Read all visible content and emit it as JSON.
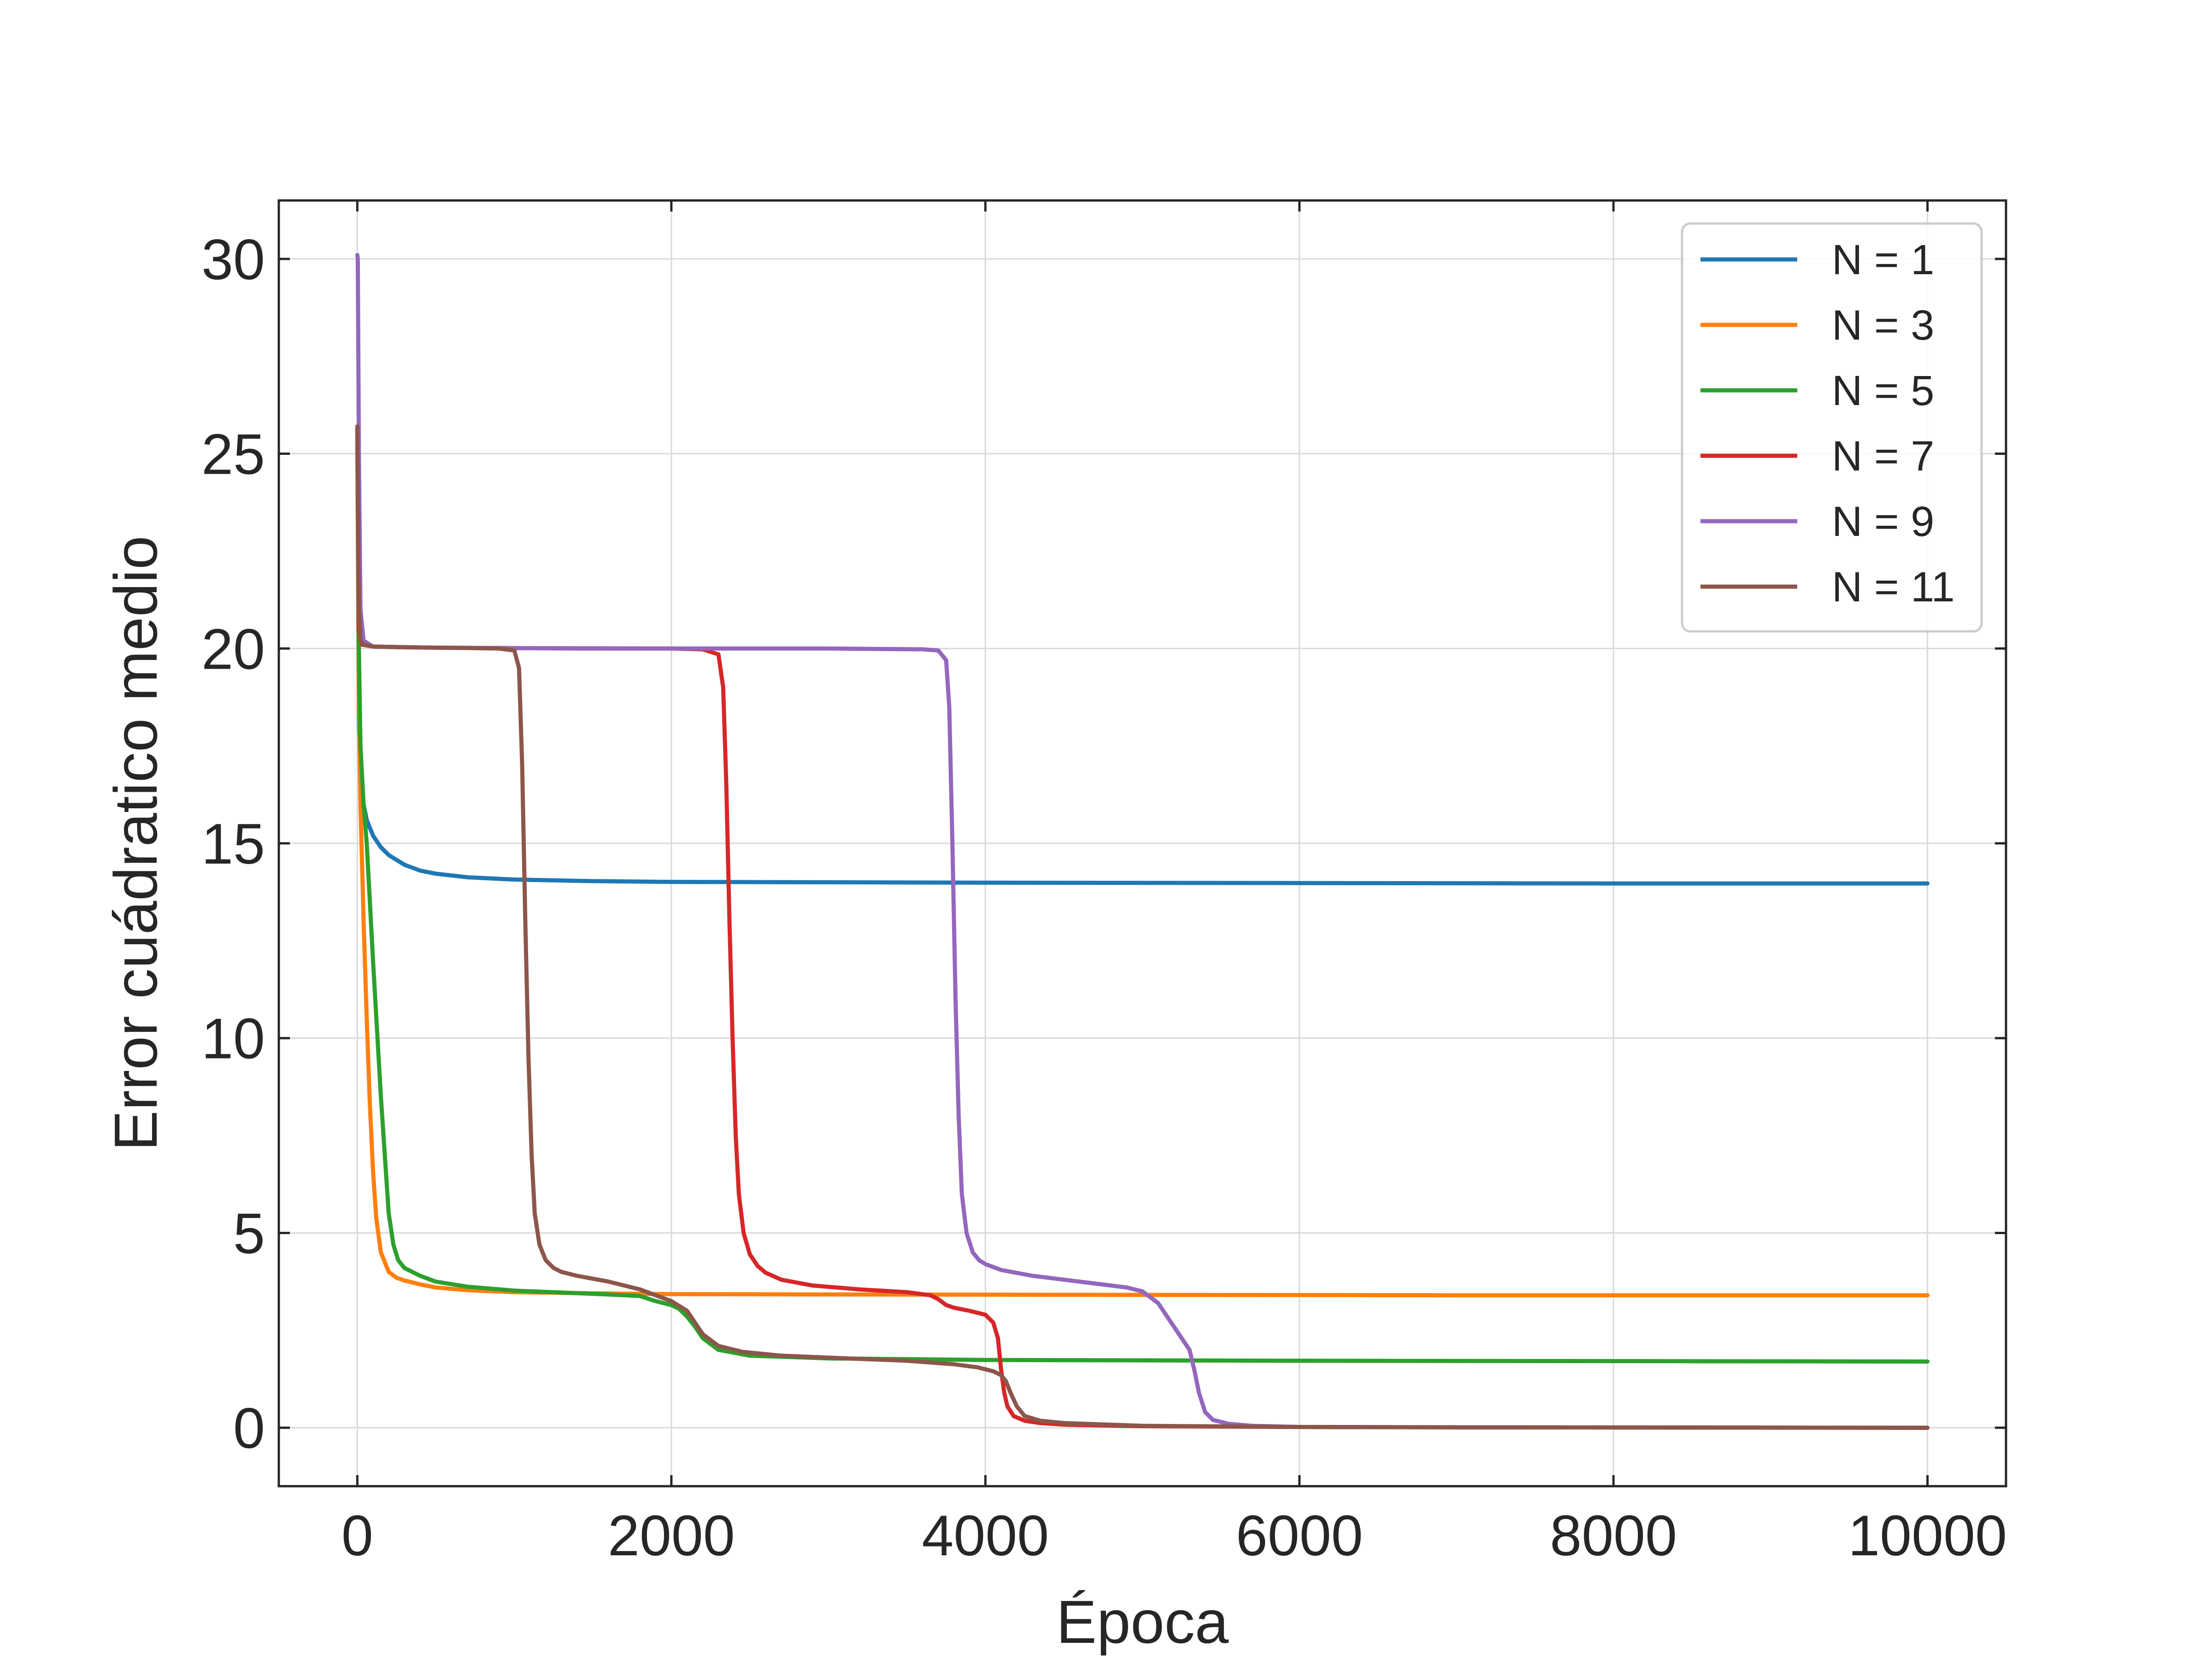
{
  "chart_data": {
    "type": "line",
    "title": "",
    "xlabel": "Época",
    "ylabel": "Error cuádratico medio",
    "xlim": [
      -500,
      10500
    ],
    "ylim": [
      -1.5,
      31.5
    ],
    "xticks": [
      0,
      2000,
      4000,
      6000,
      8000,
      10000
    ],
    "xtick_labels": [
      "0",
      "2000",
      "4000",
      "6000",
      "8000",
      "10000"
    ],
    "yticks": [
      0,
      5,
      10,
      15,
      20,
      25,
      30
    ],
    "ytick_labels": [
      "0",
      "5",
      "10",
      "15",
      "20",
      "25",
      "30"
    ],
    "grid": true,
    "legend_position": "top-right",
    "series": [
      {
        "name": "N = 1",
        "color": "#1f77b4",
        "x": [
          0,
          10,
          30,
          60,
          100,
          150,
          200,
          300,
          400,
          500,
          700,
          1000,
          1500,
          2000,
          3000,
          4000,
          6000,
          8000,
          10000
        ],
        "y": [
          25.6,
          18.0,
          16.2,
          15.6,
          15.2,
          14.9,
          14.7,
          14.45,
          14.3,
          14.22,
          14.13,
          14.07,
          14.03,
          14.01,
          14.0,
          13.99,
          13.98,
          13.97,
          13.97
        ]
      },
      {
        "name": "N = 3",
        "color": "#ff7f0e",
        "x": [
          0,
          10,
          20,
          40,
          60,
          80,
          100,
          120,
          150,
          200,
          250,
          300,
          400,
          500,
          700,
          1000,
          1500,
          2000,
          3000,
          5000,
          7000,
          10000
        ],
        "y": [
          25.6,
          18.5,
          16.0,
          13.0,
          10.5,
          8.3,
          6.6,
          5.4,
          4.5,
          4.0,
          3.85,
          3.78,
          3.68,
          3.6,
          3.53,
          3.48,
          3.45,
          3.43,
          3.42,
          3.41,
          3.4,
          3.4
        ]
      },
      {
        "name": "N = 5",
        "color": "#2ca02c",
        "x": [
          0,
          10,
          20,
          40,
          60,
          100,
          150,
          200,
          230,
          260,
          300,
          400,
          500,
          700,
          1000,
          1300,
          1600,
          1800,
          1900,
          2000,
          2050,
          2100,
          2150,
          2200,
          2300,
          2500,
          3000,
          4000,
          6000,
          8000,
          10000
        ],
        "y": [
          25.6,
          20.0,
          17.5,
          16.0,
          15.0,
          12.0,
          8.5,
          5.5,
          4.7,
          4.3,
          4.1,
          3.9,
          3.75,
          3.62,
          3.52,
          3.47,
          3.42,
          3.38,
          3.25,
          3.15,
          3.05,
          2.85,
          2.6,
          2.3,
          2.0,
          1.85,
          1.78,
          1.74,
          1.72,
          1.71,
          1.7
        ]
      },
      {
        "name": "N = 7",
        "color": "#d62728",
        "x": [
          0,
          10,
          30,
          100,
          500,
          1000,
          1500,
          2000,
          2200,
          2300,
          2330,
          2350,
          2370,
          2390,
          2410,
          2430,
          2460,
          2500,
          2550,
          2600,
          2700,
          2900,
          3200,
          3500,
          3650,
          3700,
          3750,
          3800,
          3900,
          4000,
          4050,
          4080,
          4100,
          4120,
          4140,
          4180,
          4250,
          4350,
          4500,
          5000,
          6000,
          7000,
          10000
        ],
        "y": [
          25.6,
          20.5,
          20.1,
          20.05,
          20.02,
          20.01,
          20.0,
          20.0,
          19.98,
          19.85,
          19.0,
          16.5,
          13.0,
          10.0,
          7.5,
          6.0,
          5.0,
          4.45,
          4.15,
          3.98,
          3.8,
          3.65,
          3.55,
          3.48,
          3.4,
          3.3,
          3.15,
          3.08,
          3.0,
          2.9,
          2.7,
          2.3,
          1.5,
          0.9,
          0.55,
          0.3,
          0.18,
          0.12,
          0.08,
          0.04,
          0.02,
          0.01,
          0.0
        ]
      },
      {
        "name": "N = 9",
        "color": "#9467bd",
        "x": [
          0,
          3,
          10,
          20,
          40,
          100,
          500,
          1000,
          2000,
          3000,
          3600,
          3700,
          3750,
          3770,
          3790,
          3810,
          3830,
          3850,
          3880,
          3920,
          3960,
          4000,
          4100,
          4300,
          4600,
          4900,
          5000,
          5100,
          5200,
          5300,
          5330,
          5360,
          5400,
          5450,
          5550,
          5700,
          6000,
          7000,
          10000
        ],
        "y": [
          30.1,
          30.0,
          25.0,
          21.0,
          20.2,
          20.05,
          20.02,
          20.01,
          20.0,
          20.0,
          19.98,
          19.95,
          19.7,
          18.5,
          15.0,
          11.0,
          8.0,
          6.0,
          5.0,
          4.5,
          4.3,
          4.2,
          4.05,
          3.9,
          3.75,
          3.6,
          3.5,
          3.2,
          2.6,
          2.0,
          1.5,
          0.9,
          0.4,
          0.2,
          0.1,
          0.05,
          0.02,
          0.01,
          0.0
        ]
      },
      {
        "name": "N = 11",
        "color": "#8c564b",
        "x": [
          0,
          10,
          20,
          40,
          100,
          300,
          600,
          900,
          1000,
          1030,
          1050,
          1070,
          1090,
          1110,
          1130,
          1160,
          1200,
          1250,
          1300,
          1400,
          1600,
          1800,
          1900,
          2000,
          2100,
          2150,
          2200,
          2300,
          2450,
          2700,
          3000,
          3500,
          3800,
          3950,
          4050,
          4100,
          4130,
          4160,
          4200,
          4250,
          4350,
          4500,
          5000,
          6000,
          7000,
          10000
        ],
        "y": [
          25.7,
          21.0,
          20.2,
          20.1,
          20.05,
          20.03,
          20.02,
          20.0,
          19.95,
          19.5,
          17.0,
          13.0,
          9.5,
          7.0,
          5.5,
          4.7,
          4.3,
          4.1,
          4.0,
          3.9,
          3.75,
          3.55,
          3.4,
          3.25,
          3.0,
          2.7,
          2.4,
          2.1,
          1.95,
          1.85,
          1.8,
          1.72,
          1.63,
          1.55,
          1.45,
          1.35,
          1.2,
          0.9,
          0.55,
          0.3,
          0.18,
          0.12,
          0.05,
          0.02,
          0.01,
          0.0
        ]
      }
    ]
  }
}
